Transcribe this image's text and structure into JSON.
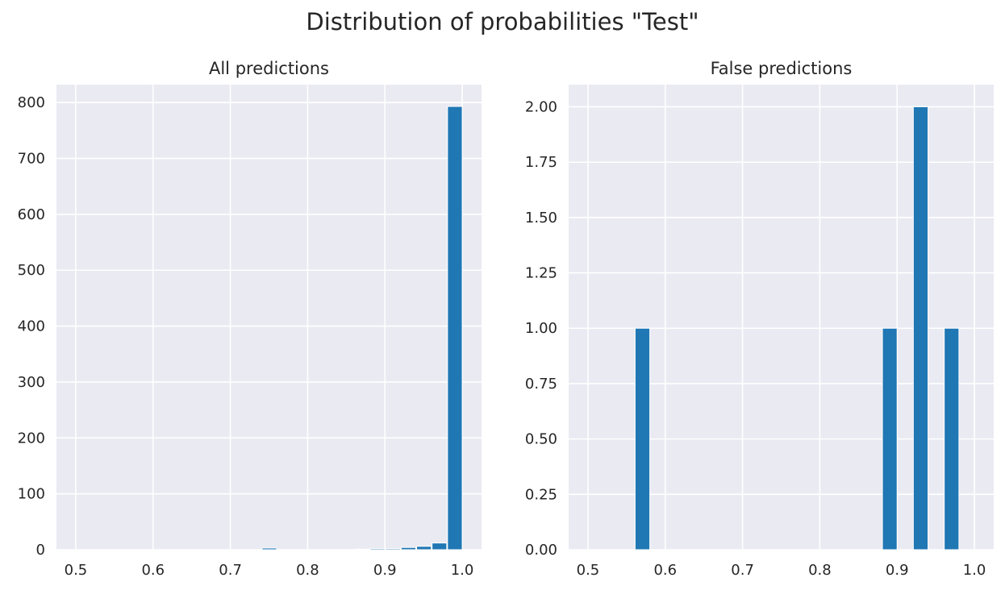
{
  "suptitle": "Distribution of probabilities \"Test\"",
  "colors": {
    "bar": "#1f77b4",
    "plot_bg": "#eaeaf2",
    "grid": "#ffffff",
    "bar_edge": "#ffffff"
  },
  "chart_data": [
    {
      "type": "bar",
      "title": "All predictions",
      "xlabel": "",
      "ylabel": "",
      "xlim": [
        0.475,
        1.025
      ],
      "ylim": [
        0,
        832
      ],
      "xticks": [
        0.5,
        0.6,
        0.7,
        0.8,
        0.9,
        1.0
      ],
      "xtick_labels": [
        "0.5",
        "0.6",
        "0.7",
        "0.8",
        "0.9",
        "1.0"
      ],
      "yticks": [
        0,
        100,
        200,
        300,
        400,
        500,
        600,
        700,
        800
      ],
      "ytick_labels": [
        "0",
        "100",
        "200",
        "300",
        "400",
        "500",
        "600",
        "700",
        "800"
      ],
      "bins": [
        {
          "x0": 0.741,
          "x1": 0.76,
          "value": 3
        },
        {
          "x0": 0.861,
          "x1": 0.88,
          "value": 1
        },
        {
          "x0": 0.881,
          "x1": 0.9,
          "value": 2
        },
        {
          "x0": 0.901,
          "x1": 0.92,
          "value": 2
        },
        {
          "x0": 0.921,
          "x1": 0.94,
          "value": 4
        },
        {
          "x0": 0.941,
          "x1": 0.96,
          "value": 6
        },
        {
          "x0": 0.961,
          "x1": 0.98,
          "value": 12
        },
        {
          "x0": 0.981,
          "x1": 1.0,
          "value": 793
        }
      ],
      "grid": true
    },
    {
      "type": "bar",
      "title": "False predictions",
      "xlabel": "",
      "ylabel": "",
      "xlim": [
        0.475,
        1.025
      ],
      "ylim": [
        0,
        2.1
      ],
      "xticks": [
        0.5,
        0.6,
        0.7,
        0.8,
        0.9,
        1.0
      ],
      "xtick_labels": [
        "0.5",
        "0.6",
        "0.7",
        "0.8",
        "0.9",
        "1.0"
      ],
      "yticks": [
        0,
        0.25,
        0.5,
        0.75,
        1.0,
        1.25,
        1.5,
        1.75,
        2.0
      ],
      "ytick_labels": [
        "0.00",
        "0.25",
        "0.50",
        "0.75",
        "1.00",
        "1.25",
        "1.50",
        "1.75",
        "2.00"
      ],
      "bins": [
        {
          "x0": 0.561,
          "x1": 0.58,
          "value": 1
        },
        {
          "x0": 0.881,
          "x1": 0.9,
          "value": 1
        },
        {
          "x0": 0.921,
          "x1": 0.94,
          "value": 2
        },
        {
          "x0": 0.961,
          "x1": 0.98,
          "value": 1
        }
      ],
      "grid": true
    }
  ]
}
